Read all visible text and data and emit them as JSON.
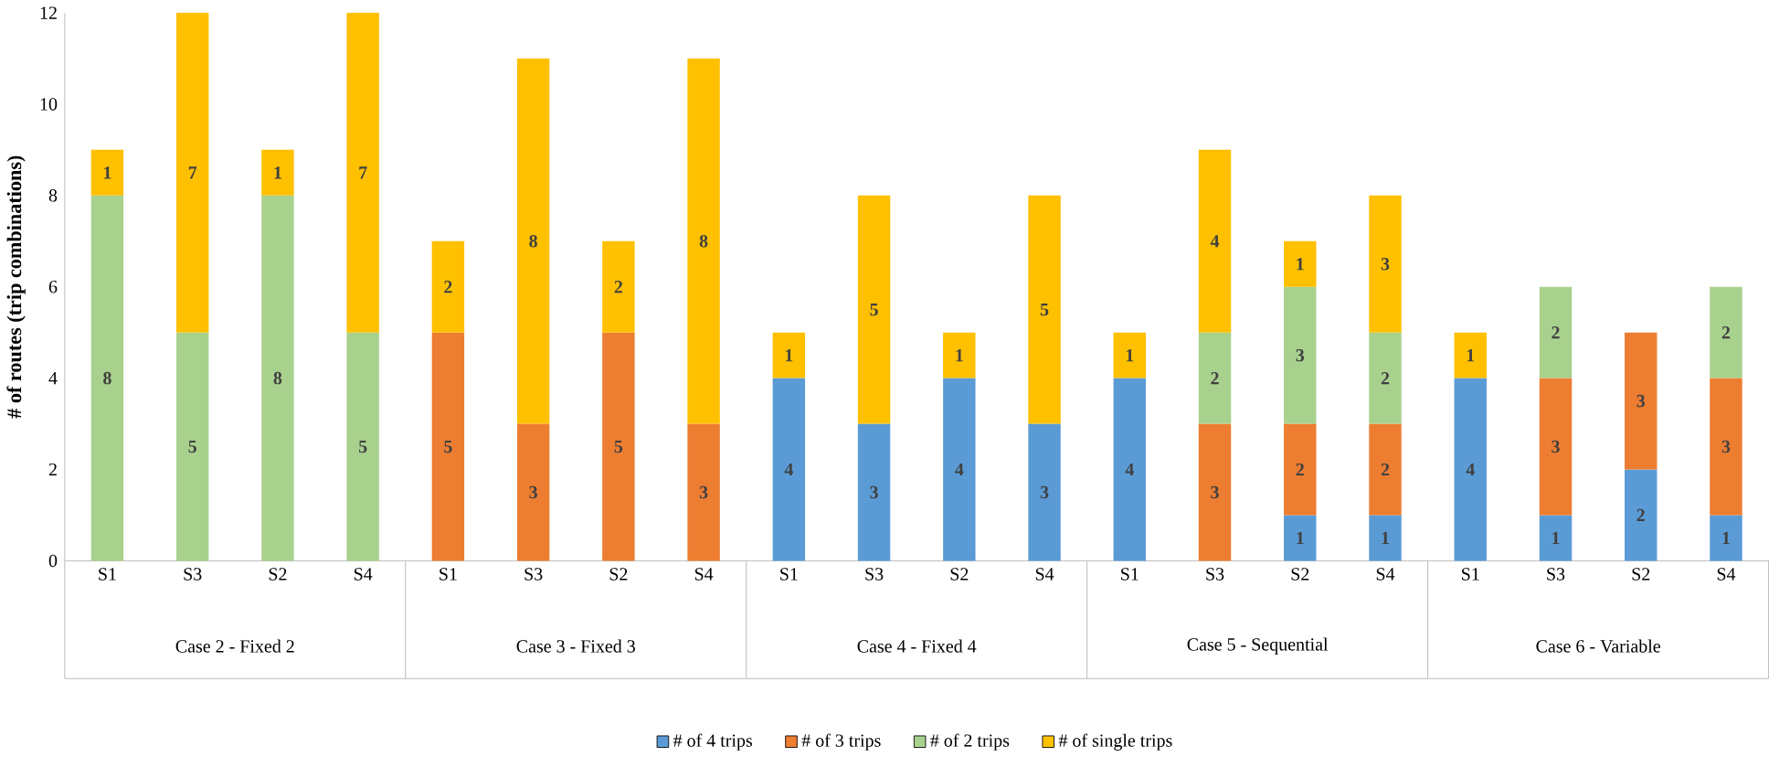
{
  "chart_data": {
    "type": "bar",
    "stacked": true,
    "ylabel": "# of routes (trip combinations)",
    "categories": [
      "S1",
      "S3",
      "S2",
      "S4",
      "S1",
      "S3",
      "S2",
      "S4",
      "S1",
      "S3",
      "S2",
      "S4",
      "S1",
      "S3",
      "S2",
      "S4",
      "S1",
      "S3",
      "S2",
      "S4"
    ],
    "annotations": [
      "Case 2 - Fixed 2",
      "Case 3 - Fixed 3",
      "Case 4 - Fixed 4",
      "Case 5 - Sequential",
      "Case 6 - Variable"
    ],
    "series": [
      {
        "name": "# of 4 trips",
        "color": "#5b9bd5",
        "values": [
          null,
          null,
          null,
          null,
          null,
          null,
          null,
          null,
          4,
          3,
          4,
          3,
          4,
          null,
          1,
          1,
          4,
          1,
          2,
          1
        ]
      },
      {
        "name": "# of 3 trips",
        "color": "#ed7d31",
        "values": [
          null,
          null,
          null,
          null,
          5,
          3,
          5,
          3,
          null,
          null,
          null,
          null,
          null,
          3,
          2,
          2,
          null,
          3,
          3,
          3
        ]
      },
      {
        "name": "# of 2 trips",
        "color": "#a9d18e",
        "values": [
          8,
          5,
          8,
          5,
          null,
          null,
          null,
          null,
          null,
          null,
          null,
          null,
          null,
          2,
          3,
          2,
          null,
          2,
          null,
          2
        ]
      },
      {
        "name": "# of single trips",
        "color": "#ffc000",
        "values": [
          1,
          7,
          1,
          7,
          2,
          8,
          2,
          8,
          1,
          5,
          1,
          5,
          1,
          4,
          1,
          3,
          1,
          null,
          null,
          null
        ]
      }
    ],
    "ylim": [
      0,
      12
    ],
    "yticks": [
      0,
      2,
      4,
      6,
      8,
      10,
      12
    ],
    "data_labels": true,
    "legend": "bottom"
  }
}
